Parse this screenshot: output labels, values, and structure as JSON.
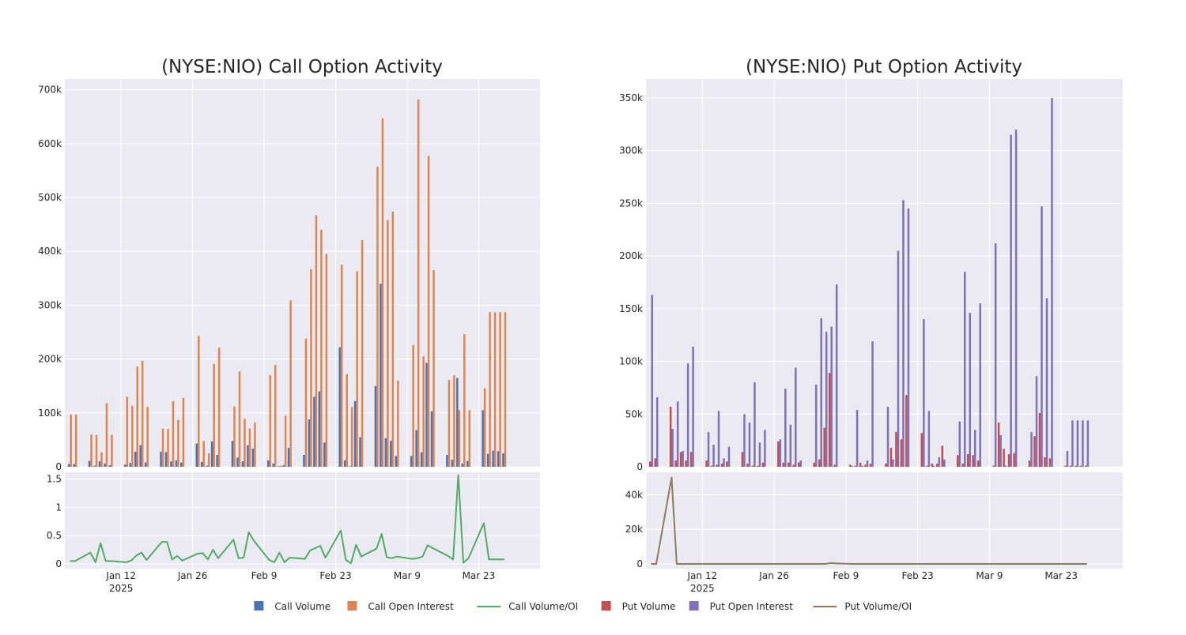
{
  "colors": {
    "call_volume": "#4c72b0",
    "call_open_interest": "#dd8452",
    "call_ratio": "#55a868",
    "put_volume": "#c44e52",
    "put_open_interest": "#8172b3",
    "put_ratio": "#937860",
    "panel_bg": "#eaeaf2",
    "grid": "#ffffff",
    "text": "#262626"
  },
  "x_axis": {
    "tick_labels": [
      "Jan 12",
      "Jan 26",
      "Feb 9",
      "Feb 23",
      "Mar 9",
      "Mar 23"
    ],
    "year_label": "2025"
  },
  "legend": {
    "placement": "bottom-center",
    "items": [
      {
        "label": "Call Volume",
        "kind": "box",
        "color_key": "call_volume"
      },
      {
        "label": "Call Open Interest",
        "kind": "box",
        "color_key": "call_open_interest"
      },
      {
        "label": "Call Volume/OI",
        "kind": "line",
        "color_key": "call_ratio"
      },
      {
        "label": "Put Volume",
        "kind": "box",
        "color_key": "put_volume"
      },
      {
        "label": "Put Open Interest",
        "kind": "box",
        "color_key": "put_open_interest"
      },
      {
        "label": "Put Volume/OI",
        "kind": "line",
        "color_key": "put_ratio"
      }
    ]
  },
  "chart_data": [
    {
      "type": "bar",
      "title": "(NYSE:NIO) Call Option Activity",
      "grid": true,
      "x_dates": [
        "2025-01-02",
        "2025-01-03",
        "2025-01-06",
        "2025-01-07",
        "2025-01-08",
        "2025-01-09",
        "2025-01-10",
        "2025-01-13",
        "2025-01-14",
        "2025-01-15",
        "2025-01-16",
        "2025-01-17",
        "2025-01-20",
        "2025-01-21",
        "2025-01-22",
        "2025-01-23",
        "2025-01-24",
        "2025-01-27",
        "2025-01-28",
        "2025-01-29",
        "2025-01-30",
        "2025-01-31",
        "2025-02-03",
        "2025-02-04",
        "2025-02-05",
        "2025-02-06",
        "2025-02-07",
        "2025-02-10",
        "2025-02-11",
        "2025-02-12",
        "2025-02-13",
        "2025-02-14",
        "2025-02-17",
        "2025-02-18",
        "2025-02-19",
        "2025-02-20",
        "2025-02-21",
        "2025-02-24",
        "2025-02-25",
        "2025-02-26",
        "2025-02-27",
        "2025-02-28",
        "2025-03-03",
        "2025-03-04",
        "2025-03-05",
        "2025-03-06",
        "2025-03-07",
        "2025-03-10",
        "2025-03-11",
        "2025-03-12",
        "2025-03-13",
        "2025-03-14",
        "2025-03-17",
        "2025-03-18",
        "2025-03-19",
        "2025-03-20",
        "2025-03-21",
        "2025-03-24",
        "2025-03-25",
        "2025-03-26",
        "2025-03-27",
        "2025-03-28"
      ],
      "series": [
        {
          "name": "Call Volume",
          "color_key": "call_volume",
          "values": [
            5000,
            5000,
            11000,
            2000,
            10000,
            6000,
            3000,
            4000,
            7000,
            28000,
            40000,
            8000,
            28000,
            27000,
            10000,
            12000,
            8000,
            43000,
            9000,
            2000,
            47000,
            22000,
            48000,
            17000,
            10000,
            40000,
            34000,
            12000,
            6000,
            1000,
            3000,
            35000,
            22000,
            88000,
            130000,
            140000,
            45000,
            222000,
            12000,
            1000,
            122000,
            55000,
            150000,
            340000,
            53000,
            48000,
            20000,
            20000,
            68000,
            27000,
            193000,
            103000,
            22000,
            13000,
            165000,
            6000,
            11000,
            105000,
            24000,
            30000,
            29000,
            25000
          ]
        },
        {
          "name": "Call Open Interest",
          "color_key": "call_open_interest",
          "values": [
            97000,
            97000,
            60000,
            59000,
            27000,
            118000,
            59000,
            130000,
            113000,
            186000,
            197000,
            111000,
            71000,
            70000,
            122000,
            87000,
            128000,
            243000,
            48000,
            25000,
            191000,
            221000,
            112000,
            177000,
            89000,
            71000,
            82000,
            170000,
            189000,
            2000,
            95000,
            309000,
            238000,
            367000,
            467000,
            440000,
            395000,
            375000,
            172000,
            111000,
            363000,
            421000,
            557000,
            647000,
            458000,
            474000,
            160000,
            226000,
            682000,
            205000,
            577000,
            365000,
            161000,
            170000,
            105000,
            246000,
            105000,
            146000,
            287000,
            287000,
            287000,
            287000
          ]
        }
      ],
      "ylim": [
        0,
        720000
      ],
      "yticks": [
        0,
        100000,
        200000,
        300000,
        400000,
        500000,
        600000,
        700000
      ],
      "ytick_labels": [
        "0",
        "100k",
        "200k",
        "300k",
        "400k",
        "500k",
        "600k",
        "700k"
      ],
      "ratio": {
        "name": "Call Volume/OI",
        "color_key": "call_ratio",
        "values": [
          0.05,
          0.05,
          0.2,
          0.03,
          0.37,
          0.05,
          0.05,
          0.03,
          0.06,
          0.15,
          0.2,
          0.07,
          0.39,
          0.39,
          0.08,
          0.14,
          0.06,
          0.18,
          0.19,
          0.08,
          0.25,
          0.1,
          0.43,
          0.1,
          0.11,
          0.56,
          0.41,
          0.07,
          0.03,
          0.2,
          0.03,
          0.11,
          0.09,
          0.24,
          0.28,
          0.32,
          0.11,
          0.59,
          0.07,
          0.01,
          0.34,
          0.13,
          0.27,
          0.53,
          0.12,
          0.1,
          0.13,
          0.09,
          0.1,
          0.13,
          0.33,
          0.28,
          0.14,
          0.08,
          1.57,
          0.02,
          0.1,
          0.72,
          0.08,
          0.08,
          0.08,
          0.08
        ],
        "ylim": [
          0,
          1.62
        ],
        "yticks": [
          0,
          0.5,
          1,
          1.5
        ],
        "ytick_labels": [
          "0",
          "0.5",
          "1",
          "1.5"
        ]
      }
    },
    {
      "type": "bar",
      "title": "(NYSE:NIO) Put Option Activity",
      "grid": true,
      "x_dates": [
        "2025-01-02",
        "2025-01-03",
        "2025-01-06",
        "2025-01-07",
        "2025-01-08",
        "2025-01-09",
        "2025-01-10",
        "2025-01-13",
        "2025-01-14",
        "2025-01-15",
        "2025-01-16",
        "2025-01-17",
        "2025-01-20",
        "2025-01-21",
        "2025-01-22",
        "2025-01-23",
        "2025-01-24",
        "2025-01-27",
        "2025-01-28",
        "2025-01-29",
        "2025-01-30",
        "2025-01-31",
        "2025-02-03",
        "2025-02-04",
        "2025-02-05",
        "2025-02-06",
        "2025-02-07",
        "2025-02-10",
        "2025-02-11",
        "2025-02-12",
        "2025-02-13",
        "2025-02-14",
        "2025-02-17",
        "2025-02-18",
        "2025-02-19",
        "2025-02-20",
        "2025-02-21",
        "2025-02-24",
        "2025-02-25",
        "2025-02-26",
        "2025-02-27",
        "2025-02-28",
        "2025-03-03",
        "2025-03-04",
        "2025-03-05",
        "2025-03-06",
        "2025-03-07",
        "2025-03-10",
        "2025-03-11",
        "2025-03-12",
        "2025-03-13",
        "2025-03-14",
        "2025-03-17",
        "2025-03-18",
        "2025-03-19",
        "2025-03-20",
        "2025-03-21",
        "2025-03-24",
        "2025-03-25",
        "2025-03-26",
        "2025-03-27",
        "2025-03-28"
      ],
      "series": [
        {
          "name": "Put Volume",
          "color_key": "put_volume",
          "values": [
            5000,
            8000,
            57000,
            6000,
            14000,
            6000,
            14000,
            6000,
            1000,
            2000,
            3000,
            5000,
            14000,
            3000,
            1000,
            1000,
            4000,
            24000,
            4000,
            4000,
            2000,
            4000,
            4000,
            7000,
            37000,
            89000,
            2000,
            2000,
            1000,
            4000,
            2000,
            3000,
            3000,
            18000,
            33000,
            26000,
            68000,
            32000,
            1000,
            3000,
            3000,
            20000,
            11000,
            3000,
            12000,
            11000,
            6000,
            1000,
            42000,
            17000,
            12000,
            13000,
            6000,
            29000,
            51000,
            9000,
            8000,
            1000,
            1000,
            1000,
            1000,
            1000
          ]
        },
        {
          "name": "Put Open Interest",
          "color_key": "put_open_interest",
          "values": [
            163000,
            66000,
            36000,
            62000,
            15000,
            98000,
            114000,
            33000,
            21000,
            53000,
            8000,
            19000,
            50000,
            42000,
            80000,
            23000,
            35000,
            26000,
            74000,
            40000,
            94000,
            6000,
            78000,
            141000,
            128000,
            133000,
            173000,
            1000,
            54000,
            1000,
            6000,
            119000,
            57000,
            7000,
            205000,
            253000,
            245000,
            140000,
            53000,
            1000,
            9000,
            7000,
            43000,
            185000,
            146000,
            35000,
            155000,
            212000,
            30000,
            1000,
            315000,
            320000,
            33000,
            86000,
            247000,
            160000,
            350000,
            15000,
            44000,
            44000,
            44000,
            44000
          ]
        }
      ],
      "ylim": [
        0,
        368000
      ],
      "yticks": [
        0,
        50000,
        100000,
        150000,
        200000,
        250000,
        300000,
        350000
      ],
      "ytick_labels": [
        "0",
        "50k",
        "100k",
        "150k",
        "200k",
        "250k",
        "300k",
        "350k"
      ],
      "ratio": {
        "name": "Put Volume/OI",
        "color_key": "put_ratio",
        "values": [
          0,
          0,
          50000,
          0,
          0,
          0,
          0,
          0,
          0,
          0,
          0,
          0,
          0,
          0,
          0,
          0,
          0,
          0,
          0,
          0,
          0,
          0,
          0,
          0,
          0,
          500,
          300,
          0,
          0,
          0,
          0,
          0,
          0,
          0,
          0,
          0,
          0,
          0,
          0,
          0,
          0,
          0,
          0,
          0,
          0,
          0,
          0,
          0,
          0,
          0,
          0,
          0,
          0,
          0,
          0,
          0,
          0,
          0,
          0,
          0,
          0,
          0
        ],
        "ylim": [
          0,
          53000
        ],
        "yticks": [
          0,
          20000,
          40000
        ],
        "ytick_labels": [
          "0",
          "20k",
          "40k"
        ]
      }
    }
  ]
}
